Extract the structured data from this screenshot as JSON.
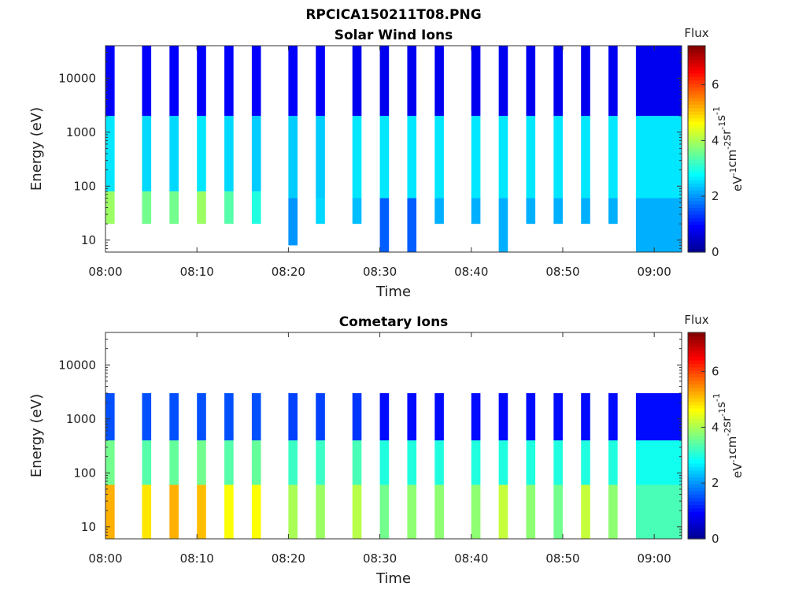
{
  "figure_title": "RPCICA150211T08.PNG",
  "colormap": [
    "#00008f",
    "#0000ff",
    "#0080ff",
    "#00ffff",
    "#80ff80",
    "#ffff00",
    "#ff8000",
    "#ff0000",
    "#800000"
  ],
  "chart_data": [
    {
      "type": "heatmap",
      "title": "Solar Wind Ions",
      "xlabel": "Time",
      "ylabel": "Energy (eV)",
      "x_range": [
        "08:00",
        "09:03"
      ],
      "x_ticks": [
        "08:00",
        "08:10",
        "08:20",
        "08:30",
        "08:40",
        "08:50",
        "09:00"
      ],
      "y_scale": "log",
      "y_range": [
        6,
        40000
      ],
      "y_ticks": [
        "10",
        "100",
        "1000",
        "10000"
      ],
      "y_tick_values": [
        10,
        100,
        1000,
        10000
      ],
      "colorbar": {
        "title": "Flux",
        "label": "eV-1cm-2sr-1s-1",
        "range": [
          0,
          7.4
        ],
        "ticks": [
          "0",
          "2",
          "4",
          "6"
        ]
      },
      "scans": [
        {
          "start": "08:00",
          "end": "08:01",
          "features": [
            {
              "e_lo": 20,
              "e_hi": 80,
              "value": 3.9
            },
            {
              "e_lo": 80,
              "e_hi": 2000,
              "value": 2.6
            },
            {
              "e_lo": 2000,
              "e_hi": 40000,
              "value": 0.9
            }
          ]
        },
        {
          "start": "08:04",
          "end": "08:05",
          "features": [
            {
              "e_lo": 20,
              "e_hi": 80,
              "value": 3.6
            },
            {
              "e_lo": 80,
              "e_hi": 2000,
              "value": 2.5
            },
            {
              "e_lo": 2000,
              "e_hi": 40000,
              "value": 0.9
            }
          ]
        },
        {
          "start": "08:07",
          "end": "08:08",
          "features": [
            {
              "e_lo": 20,
              "e_hi": 80,
              "value": 3.6
            },
            {
              "e_lo": 80,
              "e_hi": 2000,
              "value": 2.5
            },
            {
              "e_lo": 2000,
              "e_hi": 40000,
              "value": 0.9
            }
          ]
        },
        {
          "start": "08:10",
          "end": "08:11",
          "features": [
            {
              "e_lo": 20,
              "e_hi": 80,
              "value": 3.9
            },
            {
              "e_lo": 80,
              "e_hi": 2000,
              "value": 2.6
            },
            {
              "e_lo": 2000,
              "e_hi": 40000,
              "value": 0.9
            }
          ]
        },
        {
          "start": "08:13",
          "end": "08:14",
          "features": [
            {
              "e_lo": 20,
              "e_hi": 80,
              "value": 3.4
            },
            {
              "e_lo": 80,
              "e_hi": 2000,
              "value": 2.5
            },
            {
              "e_lo": 2000,
              "e_hi": 40000,
              "value": 0.9
            }
          ]
        },
        {
          "start": "08:16",
          "end": "08:17",
          "features": [
            {
              "e_lo": 20,
              "e_hi": 80,
              "value": 3.0
            },
            {
              "e_lo": 80,
              "e_hi": 2000,
              "value": 2.4
            },
            {
              "e_lo": 2000,
              "e_hi": 40000,
              "value": 0.9
            }
          ]
        },
        {
          "start": "08:20",
          "end": "08:21",
          "features": [
            {
              "e_lo": 8,
              "e_hi": 60,
              "value": 2.0
            },
            {
              "e_lo": 60,
              "e_hi": 2000,
              "value": 2.4
            },
            {
              "e_lo": 2000,
              "e_hi": 40000,
              "value": 0.9
            }
          ]
        },
        {
          "start": "08:23",
          "end": "08:24",
          "features": [
            {
              "e_lo": 20,
              "e_hi": 60,
              "value": 2.5
            },
            {
              "e_lo": 60,
              "e_hi": 2000,
              "value": 2.4
            },
            {
              "e_lo": 2000,
              "e_hi": 40000,
              "value": 0.9
            }
          ]
        },
        {
          "start": "08:27",
          "end": "08:28",
          "features": [
            {
              "e_lo": 20,
              "e_hi": 60,
              "value": 2.3
            },
            {
              "e_lo": 60,
              "e_hi": 2000,
              "value": 2.6
            },
            {
              "e_lo": 2000,
              "e_hi": 40000,
              "value": 0.8
            }
          ]
        },
        {
          "start": "08:30",
          "end": "08:31",
          "features": [
            {
              "e_lo": 6,
              "e_hi": 60,
              "value": 1.6
            },
            {
              "e_lo": 60,
              "e_hi": 2000,
              "value": 2.6
            },
            {
              "e_lo": 2000,
              "e_hi": 40000,
              "value": 0.8
            }
          ]
        },
        {
          "start": "08:33",
          "end": "08:34",
          "features": [
            {
              "e_lo": 6,
              "e_hi": 60,
              "value": 1.6
            },
            {
              "e_lo": 60,
              "e_hi": 2000,
              "value": 2.6
            },
            {
              "e_lo": 2000,
              "e_hi": 40000,
              "value": 0.8
            }
          ]
        },
        {
          "start": "08:36",
          "end": "08:37",
          "features": [
            {
              "e_lo": 20,
              "e_hi": 60,
              "value": 2.2
            },
            {
              "e_lo": 60,
              "e_hi": 2000,
              "value": 2.6
            },
            {
              "e_lo": 2000,
              "e_hi": 40000,
              "value": 0.8
            }
          ]
        },
        {
          "start": "08:40",
          "end": "08:41",
          "features": [
            {
              "e_lo": 20,
              "e_hi": 60,
              "value": 2.2
            },
            {
              "e_lo": 60,
              "e_hi": 2000,
              "value": 2.6
            },
            {
              "e_lo": 2000,
              "e_hi": 40000,
              "value": 0.8
            }
          ]
        },
        {
          "start": "08:43",
          "end": "08:44",
          "features": [
            {
              "e_lo": 6,
              "e_hi": 60,
              "value": 2.2
            },
            {
              "e_lo": 60,
              "e_hi": 2000,
              "value": 2.6
            },
            {
              "e_lo": 2000,
              "e_hi": 40000,
              "value": 0.8
            }
          ]
        },
        {
          "start": "08:46",
          "end": "08:47",
          "features": [
            {
              "e_lo": 20,
              "e_hi": 60,
              "value": 2.2
            },
            {
              "e_lo": 60,
              "e_hi": 2000,
              "value": 2.6
            },
            {
              "e_lo": 2000,
              "e_hi": 40000,
              "value": 0.8
            }
          ]
        },
        {
          "start": "08:49",
          "end": "08:50",
          "features": [
            {
              "e_lo": 20,
              "e_hi": 60,
              "value": 2.2
            },
            {
              "e_lo": 60,
              "e_hi": 2000,
              "value": 2.6
            },
            {
              "e_lo": 2000,
              "e_hi": 40000,
              "value": 0.8
            }
          ]
        },
        {
          "start": "08:52",
          "end": "08:53",
          "features": [
            {
              "e_lo": 20,
              "e_hi": 60,
              "value": 2.2
            },
            {
              "e_lo": 60,
              "e_hi": 2000,
              "value": 2.6
            },
            {
              "e_lo": 2000,
              "e_hi": 40000,
              "value": 0.8
            }
          ]
        },
        {
          "start": "08:55",
          "end": "08:56",
          "features": [
            {
              "e_lo": 20,
              "e_hi": 60,
              "value": 2.2
            },
            {
              "e_lo": 60,
              "e_hi": 2000,
              "value": 2.6
            },
            {
              "e_lo": 2000,
              "e_hi": 40000,
              "value": 0.8
            }
          ]
        },
        {
          "start": "08:58",
          "end": "09:03",
          "features": [
            {
              "e_lo": 6,
              "e_hi": 60,
              "value": 2.2
            },
            {
              "e_lo": 60,
              "e_hi": 2000,
              "value": 2.6
            },
            {
              "e_lo": 2000,
              "e_hi": 40000,
              "value": 0.8
            }
          ]
        }
      ]
    },
    {
      "type": "heatmap",
      "title": "Cometary Ions",
      "xlabel": "Time",
      "ylabel": "Energy (eV)",
      "x_range": [
        "08:00",
        "09:03"
      ],
      "x_ticks": [
        "08:00",
        "08:10",
        "08:20",
        "08:30",
        "08:40",
        "08:50",
        "09:00"
      ],
      "y_scale": "log",
      "y_range": [
        6,
        40000
      ],
      "y_ticks": [
        "10",
        "100",
        "1000",
        "10000"
      ],
      "y_tick_values": [
        10,
        100,
        1000,
        10000
      ],
      "colorbar": {
        "title": "Flux",
        "label": "eV-1cm-2sr-1s-1",
        "range": [
          0,
          7.4
        ],
        "ticks": [
          "0",
          "2",
          "4",
          "6"
        ]
      },
      "scans": [
        {
          "start": "08:00",
          "end": "08:01",
          "features": [
            {
              "e_lo": 6,
              "e_hi": 60,
              "value": 5.2
            },
            {
              "e_lo": 60,
              "e_hi": 400,
              "value": 3.6
            },
            {
              "e_lo": 400,
              "e_hi": 3000,
              "value": 1.5
            }
          ]
        },
        {
          "start": "08:04",
          "end": "08:05",
          "features": [
            {
              "e_lo": 6,
              "e_hi": 60,
              "value": 4.8
            },
            {
              "e_lo": 60,
              "e_hi": 400,
              "value": 3.4
            },
            {
              "e_lo": 400,
              "e_hi": 3000,
              "value": 1.5
            }
          ]
        },
        {
          "start": "08:07",
          "end": "08:08",
          "features": [
            {
              "e_lo": 6,
              "e_hi": 60,
              "value": 5.2
            },
            {
              "e_lo": 60,
              "e_hi": 400,
              "value": 3.5
            },
            {
              "e_lo": 400,
              "e_hi": 3000,
              "value": 1.5
            }
          ]
        },
        {
          "start": "08:10",
          "end": "08:11",
          "features": [
            {
              "e_lo": 6,
              "e_hi": 60,
              "value": 5.1
            },
            {
              "e_lo": 60,
              "e_hi": 400,
              "value": 3.6
            },
            {
              "e_lo": 400,
              "e_hi": 3000,
              "value": 1.5
            }
          ]
        },
        {
          "start": "08:13",
          "end": "08:14",
          "features": [
            {
              "e_lo": 6,
              "e_hi": 60,
              "value": 4.6
            },
            {
              "e_lo": 60,
              "e_hi": 400,
              "value": 3.4
            },
            {
              "e_lo": 400,
              "e_hi": 3000,
              "value": 1.5
            }
          ]
        },
        {
          "start": "08:16",
          "end": "08:17",
          "features": [
            {
              "e_lo": 6,
              "e_hi": 60,
              "value": 4.6
            },
            {
              "e_lo": 60,
              "e_hi": 400,
              "value": 3.5
            },
            {
              "e_lo": 400,
              "e_hi": 3000,
              "value": 1.5
            }
          ]
        },
        {
          "start": "08:20",
          "end": "08:21",
          "features": [
            {
              "e_lo": 6,
              "e_hi": 60,
              "value": 4.0
            },
            {
              "e_lo": 60,
              "e_hi": 400,
              "value": 3.2
            },
            {
              "e_lo": 400,
              "e_hi": 3000,
              "value": 1.4
            }
          ]
        },
        {
          "start": "08:23",
          "end": "08:24",
          "features": [
            {
              "e_lo": 6,
              "e_hi": 60,
              "value": 3.9
            },
            {
              "e_lo": 60,
              "e_hi": 400,
              "value": 3.2
            },
            {
              "e_lo": 400,
              "e_hi": 3000,
              "value": 1.4
            }
          ]
        },
        {
          "start": "08:27",
          "end": "08:28",
          "features": [
            {
              "e_lo": 6,
              "e_hi": 60,
              "value": 4.1
            },
            {
              "e_lo": 60,
              "e_hi": 400,
              "value": 3.3
            },
            {
              "e_lo": 400,
              "e_hi": 3000,
              "value": 1.3
            }
          ]
        },
        {
          "start": "08:30",
          "end": "08:31",
          "features": [
            {
              "e_lo": 6,
              "e_hi": 60,
              "value": 3.6
            },
            {
              "e_lo": 60,
              "e_hi": 400,
              "value": 3.0
            },
            {
              "e_lo": 400,
              "e_hi": 3000,
              "value": 1.0
            }
          ]
        },
        {
          "start": "08:33",
          "end": "08:34",
          "features": [
            {
              "e_lo": 6,
              "e_hi": 60,
              "value": 3.8
            },
            {
              "e_lo": 60,
              "e_hi": 400,
              "value": 3.0
            },
            {
              "e_lo": 400,
              "e_hi": 3000,
              "value": 1.0
            }
          ]
        },
        {
          "start": "08:36",
          "end": "08:37",
          "features": [
            {
              "e_lo": 6,
              "e_hi": 60,
              "value": 3.8
            },
            {
              "e_lo": 60,
              "e_hi": 400,
              "value": 3.0
            },
            {
              "e_lo": 400,
              "e_hi": 3000,
              "value": 1.0
            }
          ]
        },
        {
          "start": "08:40",
          "end": "08:41",
          "features": [
            {
              "e_lo": 6,
              "e_hi": 60,
              "value": 3.8
            },
            {
              "e_lo": 60,
              "e_hi": 400,
              "value": 3.0
            },
            {
              "e_lo": 400,
              "e_hi": 3000,
              "value": 1.0
            }
          ]
        },
        {
          "start": "08:43",
          "end": "08:44",
          "features": [
            {
              "e_lo": 6,
              "e_hi": 60,
              "value": 4.2
            },
            {
              "e_lo": 60,
              "e_hi": 400,
              "value": 3.0
            },
            {
              "e_lo": 400,
              "e_hi": 3000,
              "value": 1.0
            }
          ]
        },
        {
          "start": "08:46",
          "end": "08:47",
          "features": [
            {
              "e_lo": 6,
              "e_hi": 60,
              "value": 3.8
            },
            {
              "e_lo": 60,
              "e_hi": 400,
              "value": 3.0
            },
            {
              "e_lo": 400,
              "e_hi": 3000,
              "value": 1.0
            }
          ]
        },
        {
          "start": "08:49",
          "end": "08:50",
          "features": [
            {
              "e_lo": 6,
              "e_hi": 60,
              "value": 3.6
            },
            {
              "e_lo": 60,
              "e_hi": 400,
              "value": 3.0
            },
            {
              "e_lo": 400,
              "e_hi": 3000,
              "value": 1.0
            }
          ]
        },
        {
          "start": "08:52",
          "end": "08:53",
          "features": [
            {
              "e_lo": 6,
              "e_hi": 60,
              "value": 4.2
            },
            {
              "e_lo": 60,
              "e_hi": 400,
              "value": 3.0
            },
            {
              "e_lo": 400,
              "e_hi": 3000,
              "value": 1.0
            }
          ]
        },
        {
          "start": "08:55",
          "end": "08:56",
          "features": [
            {
              "e_lo": 6,
              "e_hi": 60,
              "value": 3.8
            },
            {
              "e_lo": 60,
              "e_hi": 400,
              "value": 3.0
            },
            {
              "e_lo": 400,
              "e_hi": 3000,
              "value": 1.0
            }
          ]
        },
        {
          "start": "08:58",
          "end": "09:03",
          "features": [
            {
              "e_lo": 6,
              "e_hi": 60,
              "value": 3.3
            },
            {
              "e_lo": 60,
              "e_hi": 400,
              "value": 2.9
            },
            {
              "e_lo": 400,
              "e_hi": 3000,
              "value": 1.0
            }
          ]
        }
      ]
    }
  ]
}
